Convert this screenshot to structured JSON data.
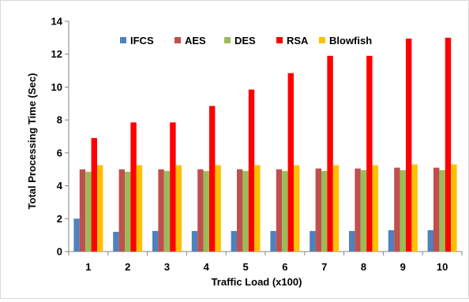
{
  "chart_data": {
    "type": "bar",
    "title": "",
    "xlabel": "Traffic Load (x100)",
    "ylabel": "Total Processing Time (Sec)",
    "ylim": [
      0,
      14
    ],
    "yticks": [
      0,
      2,
      4,
      6,
      8,
      10,
      12,
      14
    ],
    "grid": false,
    "legend_position": "top",
    "categories": [
      "1",
      "2",
      "3",
      "4",
      "5",
      "6",
      "7",
      "8",
      "9",
      "10"
    ],
    "series": [
      {
        "name": "IFCS",
        "color": "#4f81bd",
        "values": [
          2.0,
          1.2,
          1.25,
          1.25,
          1.25,
          1.25,
          1.25,
          1.25,
          1.3,
          1.3
        ]
      },
      {
        "name": "AES",
        "color": "#c0504d",
        "values": [
          5.0,
          5.0,
          5.0,
          5.0,
          5.0,
          5.0,
          5.05,
          5.05,
          5.1,
          5.1
        ]
      },
      {
        "name": "DES",
        "color": "#9bbb59",
        "values": [
          4.85,
          4.85,
          4.9,
          4.9,
          4.9,
          4.9,
          4.9,
          4.95,
          4.95,
          4.95
        ]
      },
      {
        "name": "RSA",
        "color": "#ff0000",
        "values": [
          6.9,
          7.85,
          7.85,
          8.85,
          9.85,
          10.85,
          11.9,
          11.9,
          12.95,
          13.0
        ]
      },
      {
        "name": "Blowfish",
        "color": "#ffc000",
        "values": [
          5.25,
          5.25,
          5.25,
          5.25,
          5.25,
          5.25,
          5.25,
          5.25,
          5.3,
          5.3
        ]
      }
    ]
  }
}
